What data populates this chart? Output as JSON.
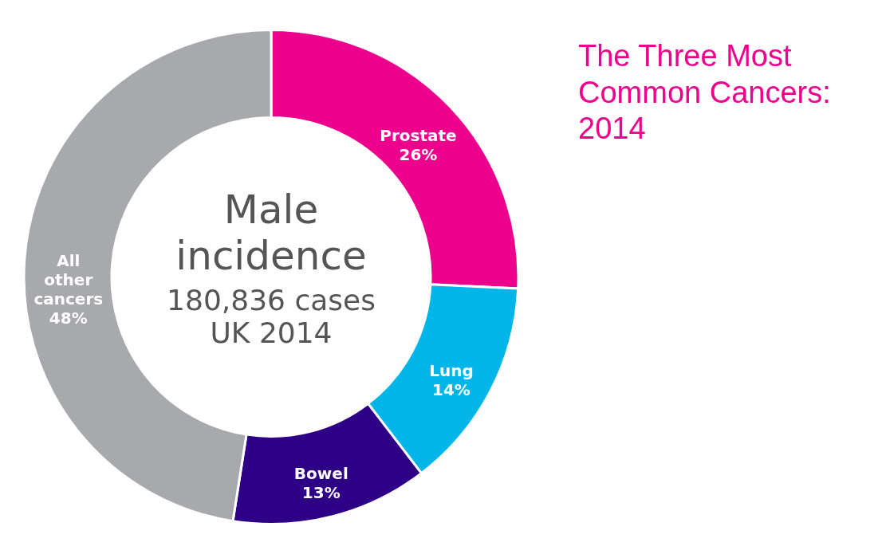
{
  "chart_data": {
    "type": "donut",
    "title": "The Three Most Common Cancers: 2014",
    "categories": [
      "Prostate",
      "Lung",
      "Bowel",
      "All other cancers"
    ],
    "values": [
      26,
      14,
      13,
      48
    ],
    "value_labels": [
      "26%",
      "14%",
      "13%",
      "48%"
    ],
    "colors": [
      "#ec008c",
      "#00b5e8",
      "#2e0085",
      "#a7a9ac"
    ],
    "annotations": [
      "Male incidence",
      "180,836 cases",
      "UK 2014"
    ]
  }
}
